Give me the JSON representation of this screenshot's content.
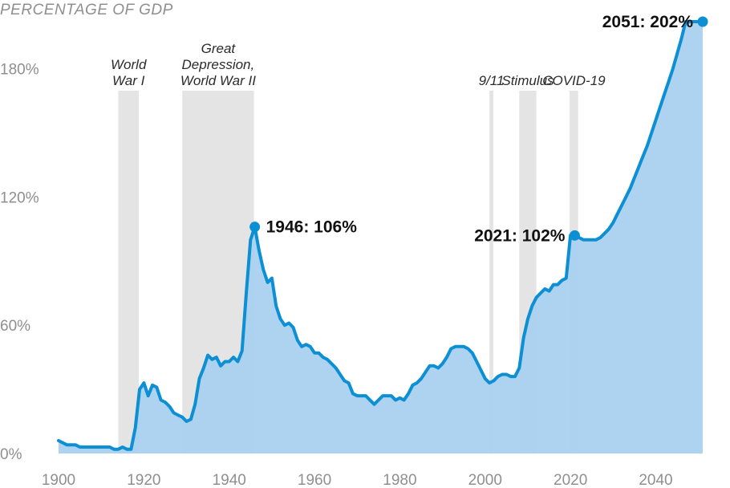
{
  "chart_data": {
    "type": "area",
    "title": "",
    "ylabel": "PERCENTAGE OF GDP",
    "xlim": [
      1900,
      2051
    ],
    "ylim": [
      0,
      202
    ],
    "x_ticks": [
      1900,
      1920,
      1940,
      1960,
      1980,
      2000,
      2020,
      2040
    ],
    "y_ticks": [
      {
        "value": 0,
        "label": "0%"
      },
      {
        "value": 60,
        "label": "60%"
      },
      {
        "value": 120,
        "label": "120%"
      },
      {
        "value": 180,
        "label": "180%"
      }
    ],
    "grid": false,
    "colors": {
      "line": "#0d8fd4",
      "fill": "#a9d1ef",
      "shade": "#e4e4e4"
    },
    "events": [
      {
        "lines": [
          "World",
          "War I"
        ],
        "start": 1914,
        "end": 1918.8
      },
      {
        "lines": [
          "Great",
          "Depression,",
          "World War II"
        ],
        "start": 1929,
        "end": 1945.8
      },
      {
        "lines": [
          "9/11"
        ],
        "start": 2001,
        "end": 2001.9
      },
      {
        "lines": [
          "Stimulus"
        ],
        "start": 2008,
        "end": 2012
      },
      {
        "lines": [
          "COVID-19"
        ],
        "start": 2019.8,
        "end": 2021.8
      }
    ],
    "annotations": [
      {
        "label": "1946: 106%",
        "x": 1946,
        "y": 106,
        "align": "right"
      },
      {
        "label": "2021: 102%",
        "x": 2021,
        "y": 102,
        "align": "left"
      },
      {
        "label": "2051: 202%",
        "x": 2051,
        "y": 202,
        "align": "left"
      }
    ],
    "series": [
      {
        "x": [
          1900,
          1901,
          1902,
          1903,
          1904,
          1905,
          1906,
          1907,
          1908,
          1909,
          1910,
          1911,
          1912,
          1913,
          1914,
          1915,
          1916,
          1917,
          1918,
          1919,
          1920,
          1921,
          1922,
          1923,
          1924,
          1925,
          1926,
          1927,
          1928,
          1929,
          1930,
          1931,
          1932,
          1933,
          1934,
          1935,
          1936,
          1937,
          1938,
          1939,
          1940,
          1941,
          1942,
          1943,
          1944,
          1945,
          1946,
          1947,
          1948,
          1949,
          1950,
          1951,
          1952,
          1953,
          1954,
          1955,
          1956,
          1957,
          1958,
          1959,
          1960,
          1961,
          1962,
          1963,
          1964,
          1965,
          1966,
          1967,
          1968,
          1969,
          1970,
          1971,
          1972,
          1973,
          1974,
          1975,
          1976,
          1977,
          1978,
          1979,
          1980,
          1981,
          1982,
          1983,
          1984,
          1985,
          1986,
          1987,
          1988,
          1989,
          1990,
          1991,
          1992,
          1993,
          1994,
          1995,
          1996,
          1997,
          1998,
          1999,
          2000,
          2001,
          2002,
          2003,
          2004,
          2005,
          2006,
          2007,
          2008,
          2009,
          2010,
          2011,
          2012,
          2013,
          2014,
          2015,
          2016,
          2017,
          2018,
          2019,
          2020,
          2021,
          2022,
          2023,
          2024,
          2025,
          2026,
          2027,
          2028,
          2029,
          2030,
          2031,
          2032,
          2033,
          2034,
          2035,
          2036,
          2037,
          2038,
          2039,
          2040,
          2041,
          2042,
          2043,
          2044,
          2045,
          2046,
          2047,
          2048,
          2049,
          2050,
          2051
        ],
        "values": [
          6,
          5,
          4,
          4,
          4,
          3,
          3,
          3,
          3,
          3,
          3,
          3,
          3,
          2,
          2,
          3,
          2,
          2,
          12,
          30,
          33,
          27,
          32,
          31,
          25,
          24,
          22,
          19,
          18,
          17,
          15,
          16,
          23,
          35,
          40,
          46,
          44,
          45,
          41,
          43,
          43,
          45,
          43,
          48,
          75,
          100,
          106,
          95,
          86,
          80,
          82,
          69,
          63,
          60,
          61,
          59,
          53,
          50,
          51,
          50,
          47,
          47,
          45,
          44,
          42,
          40,
          37,
          34,
          33,
          28,
          27,
          27,
          27,
          25,
          23,
          25,
          27,
          27,
          27,
          25,
          26,
          25,
          28,
          32,
          33,
          35,
          38,
          41,
          41,
          40,
          42,
          45,
          49,
          50,
          50,
          50,
          49,
          47,
          43,
          39,
          35,
          33,
          34,
          36,
          37,
          37,
          36,
          36,
          40,
          54,
          63,
          69,
          73,
          75,
          77,
          76,
          79,
          79,
          81,
          82,
          102,
          102,
          101,
          100,
          100,
          100,
          100,
          101,
          103,
          105,
          108,
          112,
          116,
          120,
          124,
          129,
          134,
          139,
          144,
          150,
          156,
          162,
          168,
          174,
          180,
          187,
          194,
          202,
          202,
          202,
          202,
          202
        ]
      }
    ]
  }
}
